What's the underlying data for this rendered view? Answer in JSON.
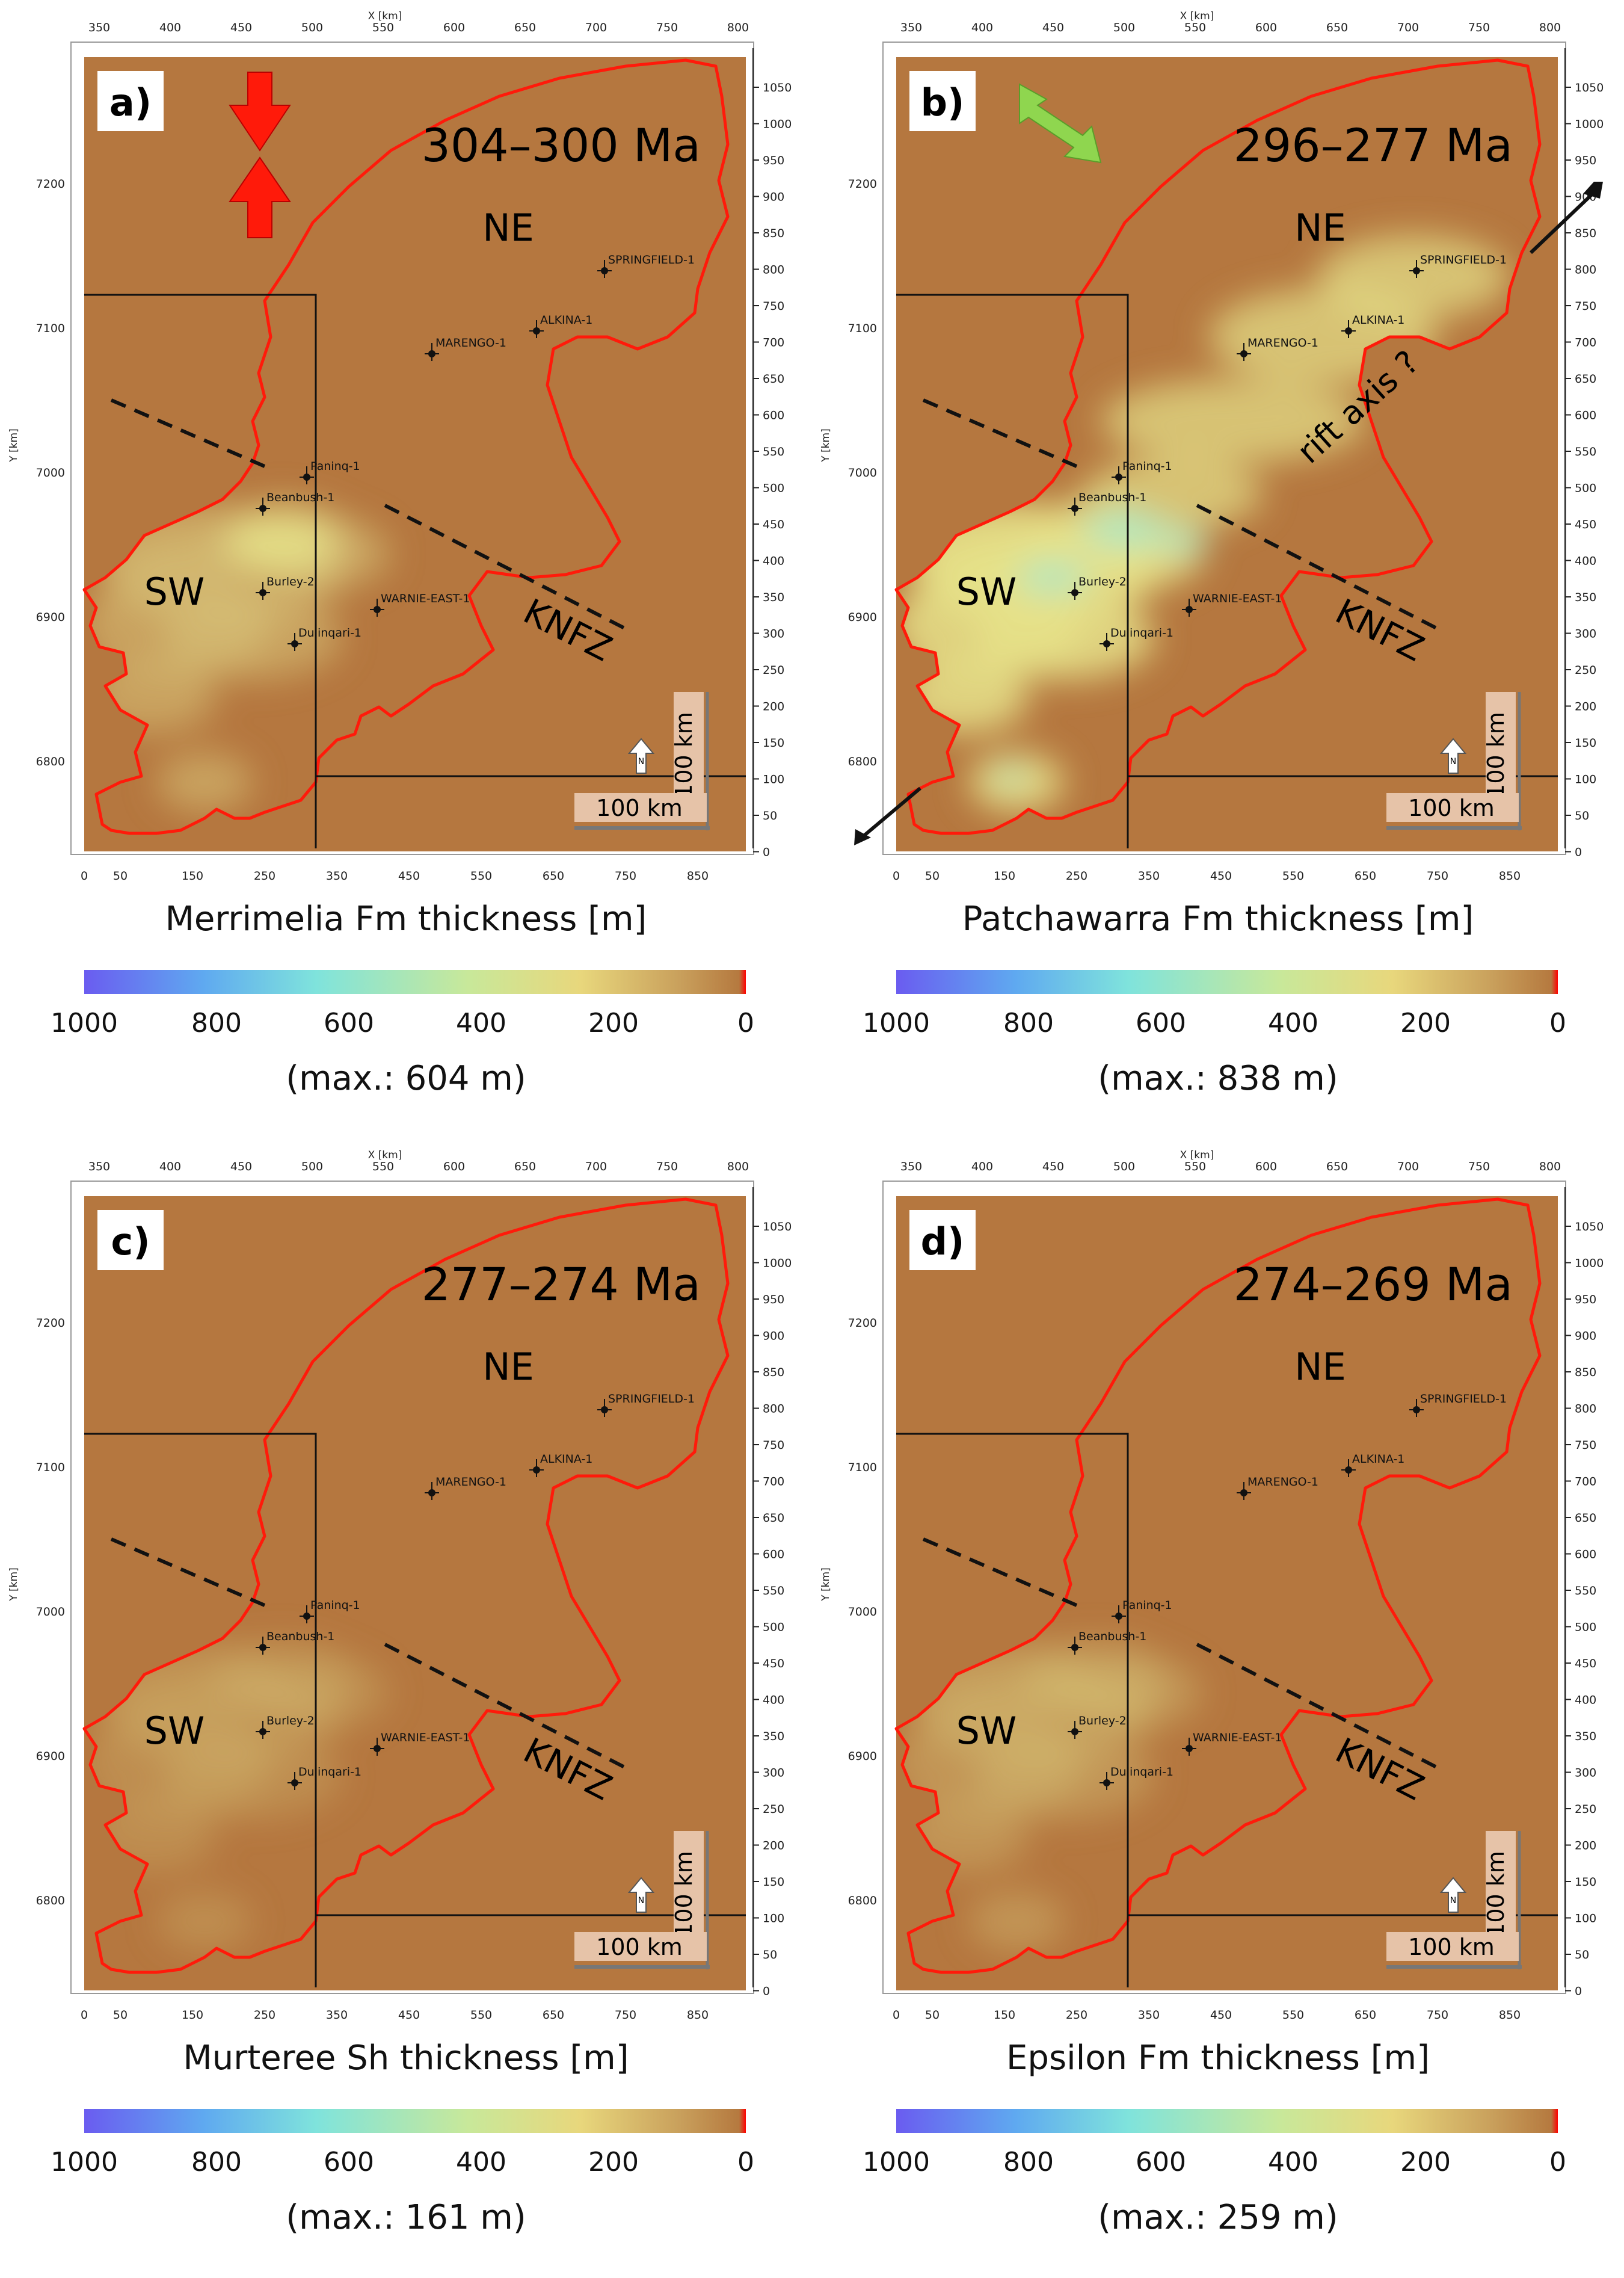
{
  "axes": {
    "x_top_title": "X [km]",
    "y_left_title": "Y [km]",
    "x_top_ticks": [
      "350",
      "400",
      "450",
      "500",
      "550",
      "600",
      "650",
      "700",
      "750",
      "800"
    ],
    "x_bottom_ticks": [
      "0",
      "50",
      "150",
      "250",
      "350",
      "450",
      "550",
      "650",
      "750",
      "850"
    ],
    "y_left_ticks": [
      "7200",
      "7100",
      "7000",
      "6900",
      "6800"
    ],
    "y_right_ticks": [
      "1050",
      "1000",
      "950",
      "900",
      "850",
      "800",
      "750",
      "700",
      "650",
      "600",
      "550",
      "500",
      "450",
      "400",
      "350",
      "300",
      "250",
      "200",
      "150",
      "100",
      "50",
      "0"
    ]
  },
  "colors": {
    "background": "#b5773f",
    "outline": "#ff1a0a",
    "thick_low": "#d8c57a",
    "thick_mid": "#e6e28a",
    "thick_high": "#a8e8c8"
  },
  "common_labels": {
    "ne": "NE",
    "sw": "SW",
    "knfz": "KNFZ",
    "north": "N",
    "scale_h": "100 km",
    "scale_v": "100 km"
  },
  "wells": [
    "SPRINGFIELD-1",
    "ALKINA-1",
    "MARENGO-1",
    "Paninq-1",
    "Beanbush-1",
    "Burley-2",
    "WARNIE-EAST-1",
    "Dulinqari-1"
  ],
  "colorbar_ticks": [
    "1000",
    "800",
    "600",
    "400",
    "200",
    "0"
  ],
  "panels": [
    {
      "letter": "a)",
      "age": "304–300 Ma",
      "caption": "Merrimelia Fm thickness [m]",
      "max": "(max.: 604 m)",
      "extra": ""
    },
    {
      "letter": "b)",
      "age": "296–277 Ma",
      "caption": "Patchawarra Fm thickness [m]",
      "max": "(max.: 838 m)",
      "extra": "rift axis ?"
    },
    {
      "letter": "c)",
      "age": "277–274 Ma",
      "caption": "Murteree Sh thickness [m]",
      "max": "(max.: 161 m)",
      "extra": ""
    },
    {
      "letter": "d)",
      "age": "274–269 Ma",
      "caption": "Epsilon Fm thickness [m]",
      "max": "(max.: 259 m)",
      "extra": ""
    }
  ]
}
